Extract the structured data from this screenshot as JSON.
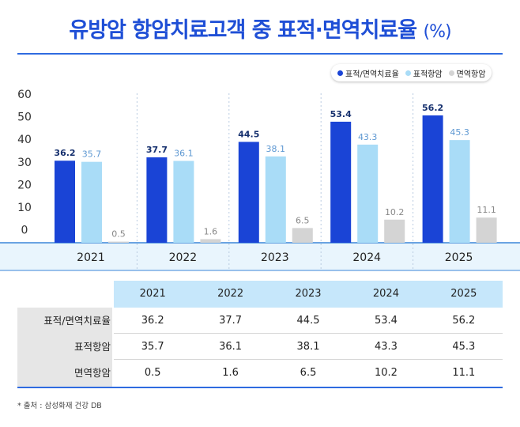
{
  "title": {
    "main": "유방암 항암치료고객 중 표적·면역치료율",
    "unit": "(%)"
  },
  "legend": [
    {
      "label": "표적/면역치료율",
      "color": "#1a44d6"
    },
    {
      "label": "표적항암",
      "color": "#a9dcf7"
    },
    {
      "label": "면역항암",
      "color": "#d4d4d4"
    }
  ],
  "chart_data": {
    "type": "bar",
    "categories": [
      "2021",
      "2022",
      "2023",
      "2024",
      "2025"
    ],
    "series": [
      {
        "name": "표적/면역치료율",
        "values": [
          36.2,
          37.7,
          44.5,
          53.4,
          56.2
        ],
        "color": "#1a44d6",
        "label_color": "#16306e"
      },
      {
        "name": "표적항암",
        "values": [
          35.7,
          36.1,
          38.1,
          43.3,
          45.3
        ],
        "color": "#a9dcf7",
        "label_color": "#5e98d2"
      },
      {
        "name": "면역항암",
        "values": [
          0.5,
          1.6,
          6.5,
          10.2,
          11.1
        ],
        "color": "#d4d4d4",
        "label_color": "#888888"
      }
    ],
    "yticks": [
      0,
      10,
      20,
      30,
      40,
      50,
      60
    ],
    "ylim": [
      0,
      60
    ]
  },
  "table": {
    "columns": [
      "2021",
      "2022",
      "2023",
      "2024",
      "2025"
    ],
    "rows": [
      {
        "label": "표적/면역치료율",
        "values": [
          "36.2",
          "37.7",
          "44.5",
          "53.4",
          "56.2"
        ]
      },
      {
        "label": "표적항암",
        "values": [
          "35.7",
          "36.1",
          "38.1",
          "43.3",
          "45.3"
        ]
      },
      {
        "label": "면역항암",
        "values": [
          "0.5",
          "1.6",
          "6.5",
          "10.2",
          "11.1"
        ]
      }
    ]
  },
  "source": "* 출처 : 삼성화재 건강 DB"
}
